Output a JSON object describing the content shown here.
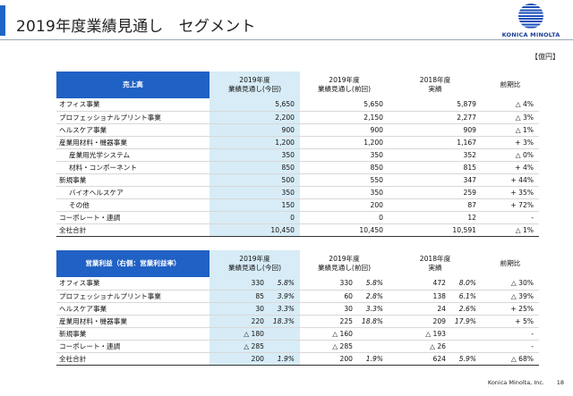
{
  "title": "2019年度業績見通し　セグメント",
  "logo_text": "KONICA MINOLTA",
  "unit": "【億円】",
  "sales": {
    "section_label": "売上高",
    "headers": [
      {
        "l1": "2019年度",
        "l2": "業績見通し(今回)"
      },
      {
        "l1": "2019年度",
        "l2": "業績見通し(前回)"
      },
      {
        "l1": "2018年度",
        "l2": "実績"
      },
      {
        "l1": "前期比",
        "l2": ""
      }
    ],
    "rows": [
      {
        "label": "オフィス事業",
        "a": "5,650",
        "b": "5,650",
        "c": "5,879",
        "d": "△ 4%",
        "sub": false,
        "total": false
      },
      {
        "label": "プロフェッショナルプリント事業",
        "a": "2,200",
        "b": "2,150",
        "c": "2,277",
        "d": "△ 3%",
        "sub": false,
        "total": false
      },
      {
        "label": "ヘルスケア事業",
        "a": "900",
        "b": "900",
        "c": "909",
        "d": "△ 1%",
        "sub": false,
        "total": false
      },
      {
        "label": "産業用材料・機器事業",
        "a": "1,200",
        "b": "1,200",
        "c": "1,167",
        "d": "+ 3%",
        "sub": false,
        "total": false
      },
      {
        "label": "産業用光学システム",
        "a": "350",
        "b": "350",
        "c": "352",
        "d": "△ 0%",
        "sub": true,
        "total": false
      },
      {
        "label": "材料・コンポーネント",
        "a": "850",
        "b": "850",
        "c": "815",
        "d": "+ 4%",
        "sub": true,
        "total": false
      },
      {
        "label": "新規事業",
        "a": "500",
        "b": "550",
        "c": "347",
        "d": "+ 44%",
        "sub": false,
        "total": false
      },
      {
        "label": "バイオヘルスケア",
        "a": "350",
        "b": "350",
        "c": "259",
        "d": "+ 35%",
        "sub": true,
        "total": false
      },
      {
        "label": "その他",
        "a": "150",
        "b": "200",
        "c": "87",
        "d": "+ 72%",
        "sub": true,
        "total": false
      },
      {
        "label": "コーポレート・連調",
        "a": "0",
        "b": "0",
        "c": "12",
        "d": "-",
        "sub": false,
        "total": false
      },
      {
        "label": "全社合計",
        "a": "10,450",
        "b": "10,450",
        "c": "10,591",
        "d": "△ 1%",
        "sub": false,
        "total": true
      }
    ]
  },
  "op_profit": {
    "section_label": "営業利益（右側：営業利益率）",
    "headers": [
      {
        "l1": "2019年度",
        "l2": "業績見通し(今回)"
      },
      {
        "l1": "2019年度",
        "l2": "業績見通し(前回)"
      },
      {
        "l1": "2018年度",
        "l2": "実績"
      },
      {
        "l1": "前期比",
        "l2": ""
      }
    ],
    "rows": [
      {
        "label": "オフィス事業",
        "a": "330",
        "ap": "5.8%",
        "b": "330",
        "bp": "5.8%",
        "c": "472",
        "cp": "8.0%",
        "d": "△ 30%",
        "total": false
      },
      {
        "label": "プロフェッショナルプリント事業",
        "a": "85",
        "ap": "3.9%",
        "b": "60",
        "bp": "2.8%",
        "c": "138",
        "cp": "6.1%",
        "d": "△ 39%",
        "total": false
      },
      {
        "label": "ヘルスケア事業",
        "a": "30",
        "ap": "3.3%",
        "b": "30",
        "bp": "3.3%",
        "c": "24",
        "cp": "2.6%",
        "d": "+ 25%",
        "total": false
      },
      {
        "label": "産業用材料・機器事業",
        "a": "220",
        "ap": "18.3%",
        "b": "225",
        "bp": "18.8%",
        "c": "209",
        "cp": "17.9%",
        "d": "+ 5%",
        "total": false
      },
      {
        "label": "新規事業",
        "a": "△ 180",
        "ap": "",
        "b": "△ 160",
        "bp": "",
        "c": "△ 193",
        "cp": "",
        "d": "-",
        "total": false
      },
      {
        "label": "コーポレート・連調",
        "a": "△ 285",
        "ap": "",
        "b": "△ 285",
        "bp": "",
        "c": "△ 26",
        "cp": "",
        "d": "-",
        "total": false
      },
      {
        "label": "全社合計",
        "a": "200",
        "ap": "1.9%",
        "b": "200",
        "bp": "1.9%",
        "c": "624",
        "cp": "5.9%",
        "d": "△ 68%",
        "total": true
      }
    ]
  },
  "footer": {
    "company": "Konica Minolta, Inc.",
    "page": "18"
  }
}
